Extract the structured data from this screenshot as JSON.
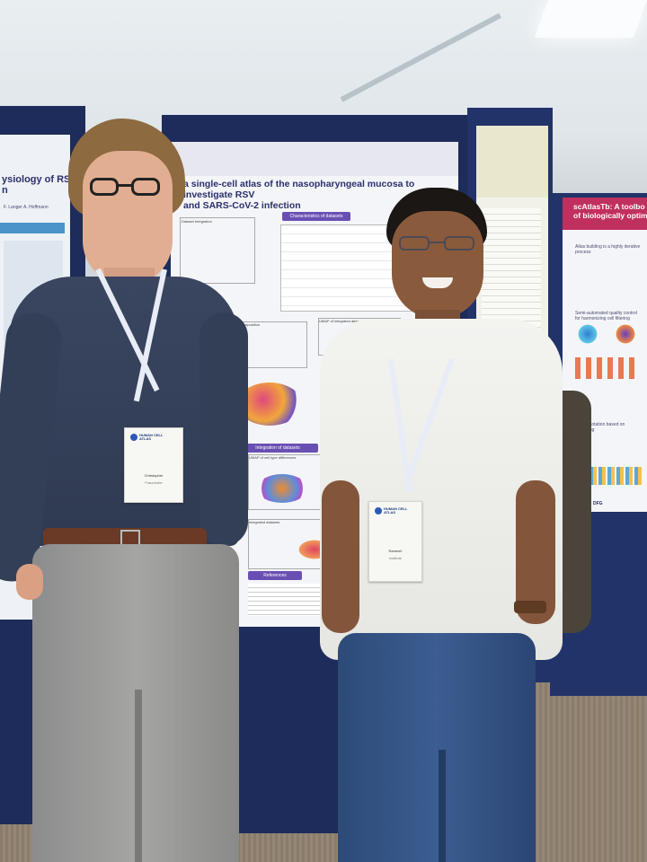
{
  "posters": {
    "left_partial": {
      "title": "ysiology of RSV\nn",
      "authors": "F. Langer  A. Hoffmann"
    },
    "center": {
      "title": "a single-cell atlas of the nasopharyngeal mucosa to investigate RSV\nand SARS-CoV-2 infection",
      "section_1": "Characteristics of datasets",
      "section_2": "Integration of datasets",
      "section_3": "References",
      "box_label_1": "Dataset Integration",
      "box_label_2": "UMAP of integrated atlas",
      "box_label_3": "Cell type composition",
      "box_label_4": "UMAP of cell type differences",
      "box_label_5": "Integrated datasets"
    },
    "right": {
      "title": "scAtlasTb: A toolbo\nof biologically optim",
      "bullet_1": "Atlas building is a highly iterative process",
      "bullet_2": "Semi-automated quality control for harmonizing cell filtering",
      "bullet_3": "Cell annotation based on clustering",
      "footer_logo": "DFG"
    }
  },
  "badges": {
    "left": {
      "logo": "HUMAN CELL ATLAS",
      "name": "Christopher",
      "detail": "Fraunhofer"
    },
    "right": {
      "logo": "HUMAN CELL ATLAS",
      "name": "Ramesh",
      "detail": "Institute"
    }
  },
  "colors": {
    "board_navy": "#1d2c5a",
    "poster_accent": "#6a4fb3",
    "right_poster_accent": "#c0305e"
  }
}
